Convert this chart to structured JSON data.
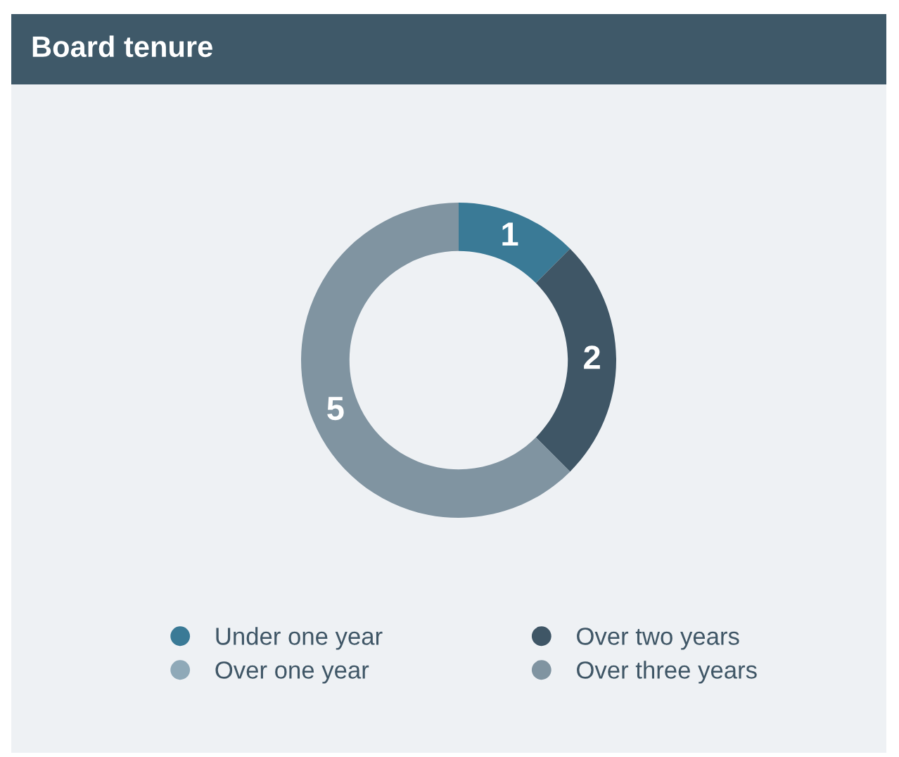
{
  "chart_data": {
    "type": "donut",
    "title": "Board tenure",
    "categories": [
      "Under one year",
      "Over one year",
      "Over two years",
      "Over three years"
    ],
    "values": [
      1,
      0,
      2,
      5
    ],
    "colors": [
      "#3a7a96",
      "#8fa9b8",
      "#3f5666",
      "#8094a1"
    ],
    "value_labels": [
      "1",
      null,
      "2",
      "5"
    ],
    "legend": "bottom"
  }
}
